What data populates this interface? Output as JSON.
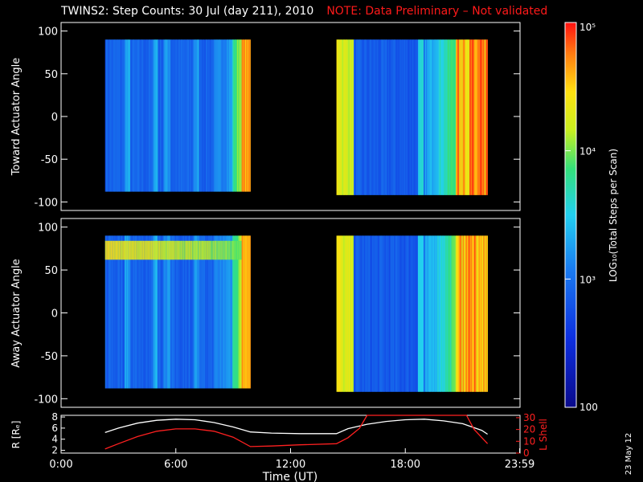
{
  "header": {
    "title": "TWINS2: Step Counts: 30 Jul (day 211), 2010",
    "note": "NOTE: Data Preliminary – Not validated"
  },
  "side_stamp": "23 May 12",
  "colors": {
    "background": "#000000",
    "foreground": "#ffffff",
    "note": "#ff1a1a",
    "ephemeris_r": "#ffffff",
    "ephemeris_lshell": "#ff2020"
  },
  "chart_data": [
    {
      "type": "heatmap",
      "panel": "toward",
      "ylabel": "Toward Actuator Angle",
      "ylim": [
        -110,
        110
      ],
      "yticks": [
        100,
        50,
        0,
        -50,
        -100
      ],
      "xlim": [
        0,
        24
      ],
      "data_blocks": [
        {
          "t_start": 2.3,
          "t_end": 9.9,
          "angle_min": -88,
          "angle_max": 90
        },
        {
          "t_start": 14.4,
          "t_end": 22.3,
          "angle_min": -92,
          "angle_max": 90
        }
      ],
      "colorscale": "log",
      "zlim": [
        100,
        100000
      ]
    },
    {
      "type": "heatmap",
      "panel": "away",
      "ylabel": "Away Actuator Angle",
      "ylim": [
        -110,
        110
      ],
      "yticks": [
        100,
        50,
        0,
        -50,
        -100
      ],
      "xlim": [
        0,
        24
      ],
      "data_blocks": [
        {
          "t_start": 2.3,
          "t_end": 9.9,
          "angle_min": -88,
          "angle_max": 90
        },
        {
          "t_start": 14.4,
          "t_end": 22.3,
          "angle_min": -92,
          "angle_max": 90
        }
      ],
      "colorscale": "log",
      "zlim": [
        100,
        100000
      ]
    },
    {
      "type": "line",
      "panel": "ephemeris",
      "xlabel": "Time (UT)",
      "xticks": [
        "0:00",
        "6:00",
        "12:00",
        "18:00",
        "23:59"
      ],
      "xtick_values": [
        0,
        6,
        12,
        18,
        23.98
      ],
      "xlim": [
        0,
        24
      ],
      "left_axis": {
        "label": "R [Rₑ]",
        "ylim": [
          1.5,
          8.3
        ],
        "ticks": [
          8,
          6,
          4,
          2
        ]
      },
      "right_axis": {
        "label": "L Shell",
        "ylim": [
          0,
          32
        ],
        "ticks": [
          30,
          20,
          10,
          0
        ]
      },
      "series": [
        {
          "axis": "left",
          "color": "#ffffff",
          "x": [
            2.3,
            3,
            4,
            5,
            6,
            7,
            8,
            9,
            9.9,
            11,
            12.5,
            14.4,
            15,
            16,
            17,
            18,
            19,
            20,
            21,
            22,
            22.3
          ],
          "y": [
            5.2,
            6.0,
            6.9,
            7.4,
            7.6,
            7.5,
            7.0,
            6.2,
            5.3,
            5.1,
            5.0,
            5.0,
            5.9,
            6.7,
            7.2,
            7.5,
            7.6,
            7.3,
            6.8,
            5.6,
            4.9
          ]
        },
        {
          "axis": "right",
          "color": "#ff2020",
          "x": [
            2.3,
            3,
            4,
            5,
            6,
            7,
            8,
            9,
            9.9,
            11,
            12.5,
            14.4,
            15,
            15.6,
            16.0,
            21.2,
            21.6,
            22.3
          ],
          "y": [
            3.5,
            8,
            14,
            18.5,
            20.5,
            20.5,
            18.5,
            13.5,
            5.5,
            6,
            7,
            8,
            13,
            21,
            33,
            33,
            20,
            8
          ]
        }
      ]
    }
  ],
  "colorbar": {
    "label": "LOG₁₀(Total Steps per Scan)",
    "labels": [
      "10⁵",
      "10⁴",
      "10³",
      "100"
    ],
    "values": [
      100000,
      10000,
      1000,
      100
    ]
  }
}
